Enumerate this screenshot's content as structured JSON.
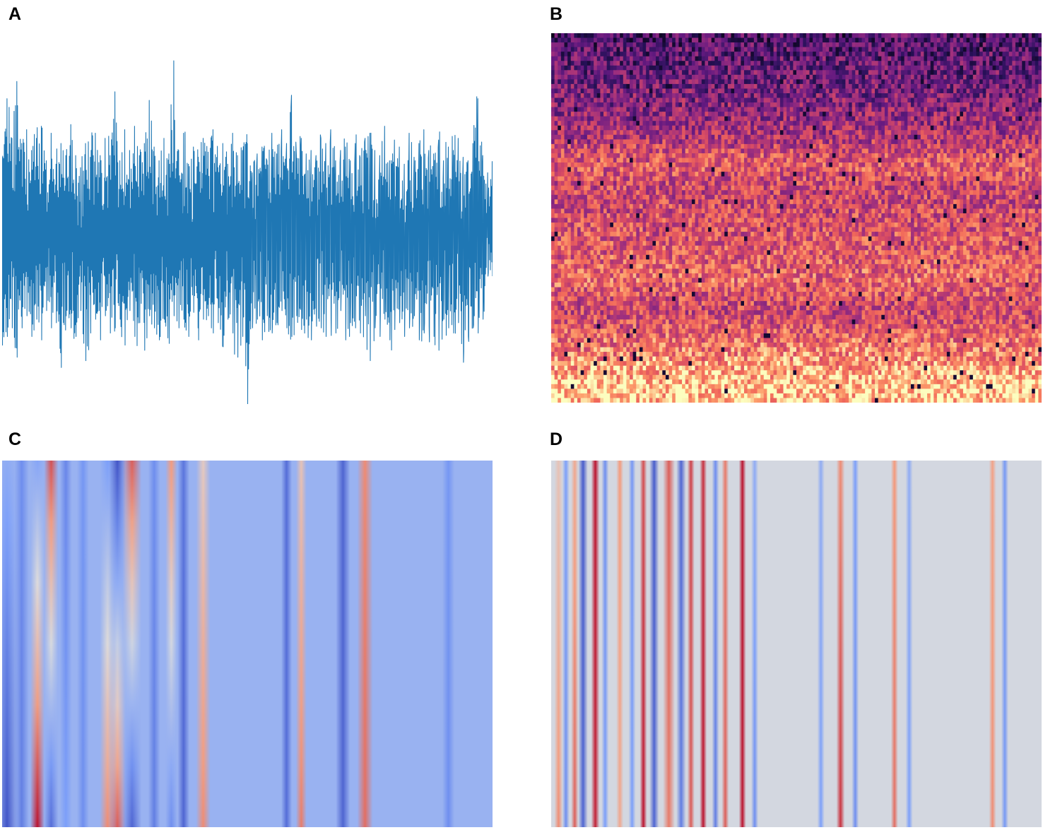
{
  "panels": {
    "a": {
      "label": "A"
    },
    "b": {
      "label": "B"
    },
    "c": {
      "label": "C"
    },
    "d": {
      "label": "D"
    }
  },
  "chart_data": [
    {
      "panel": "A",
      "type": "line",
      "title": "",
      "xlabel": "",
      "ylabel": "",
      "axes_visible": false,
      "grid": false,
      "color": "#1f77b4",
      "ylim": [
        -1,
        1
      ],
      "series": [
        {
          "x": [
            0,
            0.01,
            0.02,
            0.03,
            0.04,
            0.05,
            0.06,
            0.07,
            0.08,
            0.09,
            0.1,
            0.11,
            0.12,
            0.13,
            0.14,
            0.15,
            0.16,
            0.17,
            0.18,
            0.19,
            0.2,
            0.21,
            0.22,
            0.23,
            0.24,
            0.25,
            0.26,
            0.27,
            0.28,
            0.29,
            0.3,
            0.31,
            0.32,
            0.33,
            0.34,
            0.35,
            0.36,
            0.37,
            0.38,
            0.39,
            0.4,
            0.41,
            0.42,
            0.43,
            0.44,
            0.45,
            0.46,
            0.47,
            0.48,
            0.49,
            0.5,
            0.51,
            0.52,
            0.53,
            0.54,
            0.55,
            0.56,
            0.57,
            0.58,
            0.59,
            0.6,
            0.61,
            0.62,
            0.63,
            0.64,
            0.65,
            0.66,
            0.67,
            0.68,
            0.69,
            0.7,
            0.71,
            0.72,
            0.73,
            0.74,
            0.75,
            0.76,
            0.77,
            0.78,
            0.79,
            0.8,
            0.81,
            0.82,
            0.83,
            0.84,
            0.85,
            0.86,
            0.87,
            0.88,
            0.89,
            0.9,
            0.91,
            0.92,
            0.93,
            0.94,
            0.95,
            0.96,
            0.97,
            0.98,
            0.99,
            1.0
          ],
          "upper": [
            0.45,
            0.78,
            0.55,
            0.88,
            0.52,
            0.6,
            0.48,
            0.55,
            0.62,
            0.42,
            0.58,
            0.4,
            0.52,
            0.45,
            0.63,
            0.45,
            0.38,
            0.52,
            0.44,
            0.58,
            0.45,
            0.55,
            0.45,
            0.82,
            0.42,
            0.6,
            0.48,
            0.62,
            0.45,
            0.52,
            0.77,
            0.5,
            0.42,
            0.55,
            0.46,
            1.0,
            0.48,
            0.58,
            0.4,
            0.5,
            0.44,
            0.55,
            0.47,
            0.6,
            0.38,
            0.52,
            0.4,
            0.58,
            0.45,
            0.48,
            0.52,
            0.35,
            0.46,
            0.5,
            0.42,
            0.58,
            0.46,
            0.6,
            0.52,
            0.8,
            0.45,
            0.55,
            0.46,
            0.48,
            0.45,
            0.55,
            0.52,
            0.6,
            0.42,
            0.48,
            0.5,
            0.42,
            0.52,
            0.44,
            0.55,
            0.58,
            0.48,
            0.45,
            0.62,
            0.42,
            0.54,
            0.5,
            0.4,
            0.58,
            0.44,
            0.52,
            0.6,
            0.48,
            0.46,
            0.54,
            0.42,
            0.5,
            0.48,
            0.55,
            0.44,
            0.42,
            0.52,
            0.78,
            0.45,
            0.35,
            0.35
          ],
          "lower": [
            -0.65,
            -0.6,
            -0.55,
            -0.72,
            -0.55,
            -0.48,
            -0.6,
            -0.5,
            -0.62,
            -0.45,
            -0.55,
            -0.52,
            -0.78,
            -0.48,
            -0.55,
            -0.6,
            -0.45,
            -0.74,
            -0.58,
            -0.5,
            -0.62,
            -0.48,
            -0.58,
            -0.55,
            -0.5,
            -0.65,
            -0.45,
            -0.6,
            -0.52,
            -0.68,
            -0.48,
            -0.55,
            -0.62,
            -0.5,
            -0.64,
            -0.48,
            -0.55,
            -0.5,
            -0.6,
            -0.46,
            -0.62,
            -0.5,
            -0.48,
            -0.58,
            -0.52,
            -0.66,
            -0.5,
            -0.58,
            -0.72,
            -0.6,
            -1.0,
            -0.55,
            -0.5,
            -0.62,
            -0.48,
            -0.58,
            -0.52,
            -0.45,
            -0.55,
            -0.6,
            -0.48,
            -0.56,
            -0.5,
            -0.62,
            -0.46,
            -0.55,
            -0.6,
            -0.5,
            -0.58,
            -0.45,
            -0.62,
            -0.52,
            -0.55,
            -0.58,
            -0.48,
            -0.74,
            -0.55,
            -0.6,
            -0.5,
            -0.62,
            -0.56,
            -0.52,
            -0.6,
            -0.55,
            -0.48,
            -0.62,
            -0.58,
            -0.54,
            -0.6,
            -0.68,
            -0.5,
            -0.55,
            -0.58,
            -0.52,
            -0.75,
            -0.6,
            -0.55,
            -0.58,
            -0.5,
            -0.25,
            -0.25
          ]
        }
      ]
    },
    {
      "panel": "B",
      "type": "heatmap",
      "title": "",
      "xlabel": "",
      "ylabel": "",
      "axes_visible": false,
      "colormap": "magma",
      "value_range": [
        0,
        1
      ],
      "rows": 26,
      "cols": 60,
      "row_mean_levels_top_to_bottom": [
        0.25,
        0.28,
        0.3,
        0.33,
        0.36,
        0.4,
        0.45,
        0.5,
        0.62,
        0.66,
        0.6,
        0.58,
        0.6,
        0.62,
        0.64,
        0.66,
        0.68,
        0.7,
        0.62,
        0.58,
        0.65,
        0.72,
        0.78,
        0.85,
        0.92,
        0.9
      ]
    },
    {
      "panel": "C",
      "type": "heatmap",
      "title": "",
      "xlabel": "",
      "ylabel": "",
      "axes_visible": false,
      "colormap": "coolwarm",
      "value_range": [
        -1,
        1
      ],
      "background_value": -0.35,
      "components": [
        {
          "x": 0.01,
          "width": 0.018,
          "top": -0.4,
          "bottom": -0.95
        },
        {
          "x": 0.04,
          "width": 0.012,
          "top": -0.6,
          "bottom": -0.7
        },
        {
          "x": 0.072,
          "width": 0.012,
          "top": -0.45,
          "bottom": 0.95
        },
        {
          "x": 0.1,
          "width": 0.012,
          "top": 0.75,
          "bottom": -0.8
        },
        {
          "x": 0.13,
          "width": 0.01,
          "top": -0.65,
          "bottom": -0.5
        },
        {
          "x": 0.165,
          "width": 0.01,
          "top": -0.55,
          "bottom": -0.6
        },
        {
          "x": 0.215,
          "width": 0.013,
          "top": -0.5,
          "bottom": 0.55
        },
        {
          "x": 0.235,
          "width": 0.014,
          "top": -0.95,
          "bottom": 0.7
        },
        {
          "x": 0.265,
          "width": 0.016,
          "top": 0.7,
          "bottom": -0.85
        },
        {
          "x": 0.31,
          "width": 0.01,
          "top": -0.6,
          "bottom": -0.7
        },
        {
          "x": 0.345,
          "width": 0.01,
          "top": 0.5,
          "bottom": -0.6
        },
        {
          "x": 0.37,
          "width": 0.01,
          "top": -0.75,
          "bottom": -0.85
        },
        {
          "x": 0.41,
          "width": 0.012,
          "top": 0.15,
          "bottom": 0.55
        },
        {
          "x": 0.58,
          "width": 0.009,
          "top": -0.8,
          "bottom": -0.8
        },
        {
          "x": 0.61,
          "width": 0.009,
          "top": 0.2,
          "bottom": 0.6
        },
        {
          "x": 0.695,
          "width": 0.012,
          "top": -0.85,
          "bottom": -0.85
        },
        {
          "x": 0.74,
          "width": 0.013,
          "top": 0.55,
          "bottom": 0.65
        },
        {
          "x": 0.91,
          "width": 0.01,
          "top": -0.55,
          "bottom": -0.6
        }
      ]
    },
    {
      "panel": "D",
      "type": "heatmap",
      "title": "",
      "xlabel": "",
      "ylabel": "",
      "axes_visible": false,
      "colormap": "coolwarm",
      "value_range": [
        -1,
        1
      ],
      "background_value": -0.05,
      "components": [
        {
          "x": 0.015,
          "width": 0.007,
          "top": 0.2,
          "bottom": 0.55
        },
        {
          "x": 0.03,
          "width": 0.006,
          "top": -0.5,
          "bottom": -0.6
        },
        {
          "x": 0.048,
          "width": 0.006,
          "top": 0.4,
          "bottom": 0.7
        },
        {
          "x": 0.065,
          "width": 0.008,
          "top": -0.9,
          "bottom": -0.85
        },
        {
          "x": 0.09,
          "width": 0.007,
          "top": 0.95,
          "bottom": 0.9
        },
        {
          "x": 0.11,
          "width": 0.006,
          "top": -0.6,
          "bottom": -0.5
        },
        {
          "x": 0.14,
          "width": 0.006,
          "top": 0.5,
          "bottom": 0.4
        },
        {
          "x": 0.165,
          "width": 0.006,
          "top": -0.55,
          "bottom": -0.5
        },
        {
          "x": 0.188,
          "width": 0.006,
          "top": 0.75,
          "bottom": 0.95
        },
        {
          "x": 0.21,
          "width": 0.008,
          "top": -0.9,
          "bottom": -0.85
        },
        {
          "x": 0.24,
          "width": 0.01,
          "top": 0.7,
          "bottom": 0.6
        },
        {
          "x": 0.265,
          "width": 0.008,
          "top": -0.85,
          "bottom": -0.7
        },
        {
          "x": 0.285,
          "width": 0.006,
          "top": 0.8,
          "bottom": 0.7
        },
        {
          "x": 0.31,
          "width": 0.006,
          "top": 0.85,
          "bottom": 0.95
        },
        {
          "x": 0.335,
          "width": 0.006,
          "top": -0.6,
          "bottom": -0.7
        },
        {
          "x": 0.355,
          "width": 0.006,
          "top": 0.6,
          "bottom": 0.7
        },
        {
          "x": 0.39,
          "width": 0.006,
          "top": 0.95,
          "bottom": 0.95
        },
        {
          "x": 0.415,
          "width": 0.006,
          "top": -0.4,
          "bottom": -0.6
        },
        {
          "x": 0.55,
          "width": 0.006,
          "top": -0.4,
          "bottom": -0.5
        },
        {
          "x": 0.59,
          "width": 0.007,
          "top": 0.55,
          "bottom": 0.85
        },
        {
          "x": 0.62,
          "width": 0.006,
          "top": -0.5,
          "bottom": -0.6
        },
        {
          "x": 0.7,
          "width": 0.006,
          "top": 0.5,
          "bottom": 0.65
        },
        {
          "x": 0.73,
          "width": 0.006,
          "top": -0.4,
          "bottom": -0.5
        },
        {
          "x": 0.9,
          "width": 0.006,
          "top": 0.45,
          "bottom": 0.55
        },
        {
          "x": 0.925,
          "width": 0.006,
          "top": -0.55,
          "bottom": -0.55
        }
      ]
    }
  ]
}
